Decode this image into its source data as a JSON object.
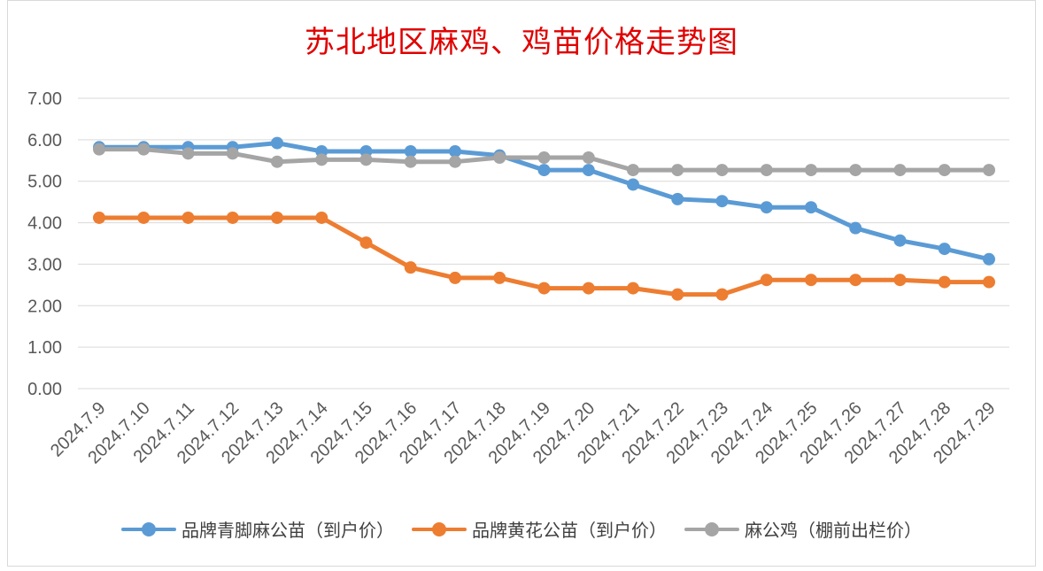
{
  "chart_data": {
    "type": "line",
    "title": "苏北地区麻鸡、鸡苗价格走势图",
    "categories": [
      "2024.7.9",
      "2024.7.10",
      "2024.7.11",
      "2024.7.12",
      "2024.7.13",
      "2024.7.14",
      "2024.7.15",
      "2024.7.16",
      "2024.7.17",
      "2024.7.18",
      "2024.7.19",
      "2024.7.20",
      "2024.7.21",
      "2024.7.22",
      "2024.7.23",
      "2024.7.24",
      "2024.7.25",
      "2024.7.26",
      "2024.7.27",
      "2024.7.28",
      "2024.7.29"
    ],
    "series": [
      {
        "name": "品牌青脚麻公苗（到户价）",
        "color": "#5b9bd5",
        "values": [
          5.82,
          5.82,
          5.82,
          5.82,
          5.92,
          5.72,
          5.72,
          5.72,
          5.72,
          5.62,
          5.27,
          5.27,
          4.92,
          4.57,
          4.52,
          4.37,
          4.37,
          3.87,
          3.57,
          3.37,
          3.12
        ]
      },
      {
        "name": "品牌黄花公苗（到户价）",
        "color": "#ed7d31",
        "values": [
          4.12,
          4.12,
          4.12,
          4.12,
          4.12,
          4.12,
          3.52,
          2.92,
          2.67,
          2.67,
          2.42,
          2.42,
          2.42,
          2.27,
          2.27,
          2.62,
          2.62,
          2.62,
          2.62,
          2.57,
          2.57
        ]
      },
      {
        "name": "麻公鸡（棚前出栏价）",
        "color": "#a5a5a5",
        "values": [
          5.77,
          5.77,
          5.67,
          5.67,
          5.47,
          5.52,
          5.52,
          5.47,
          5.47,
          5.57,
          5.57,
          5.57,
          5.27,
          5.27,
          5.27,
          5.27,
          5.27,
          5.27,
          5.27,
          5.27,
          5.27
        ]
      }
    ],
    "yticks": [
      "0.00",
      "1.00",
      "2.00",
      "3.00",
      "4.00",
      "5.00",
      "6.00",
      "7.00"
    ],
    "ylim": [
      0,
      7
    ],
    "grid": true,
    "legend_position": "bottom"
  }
}
